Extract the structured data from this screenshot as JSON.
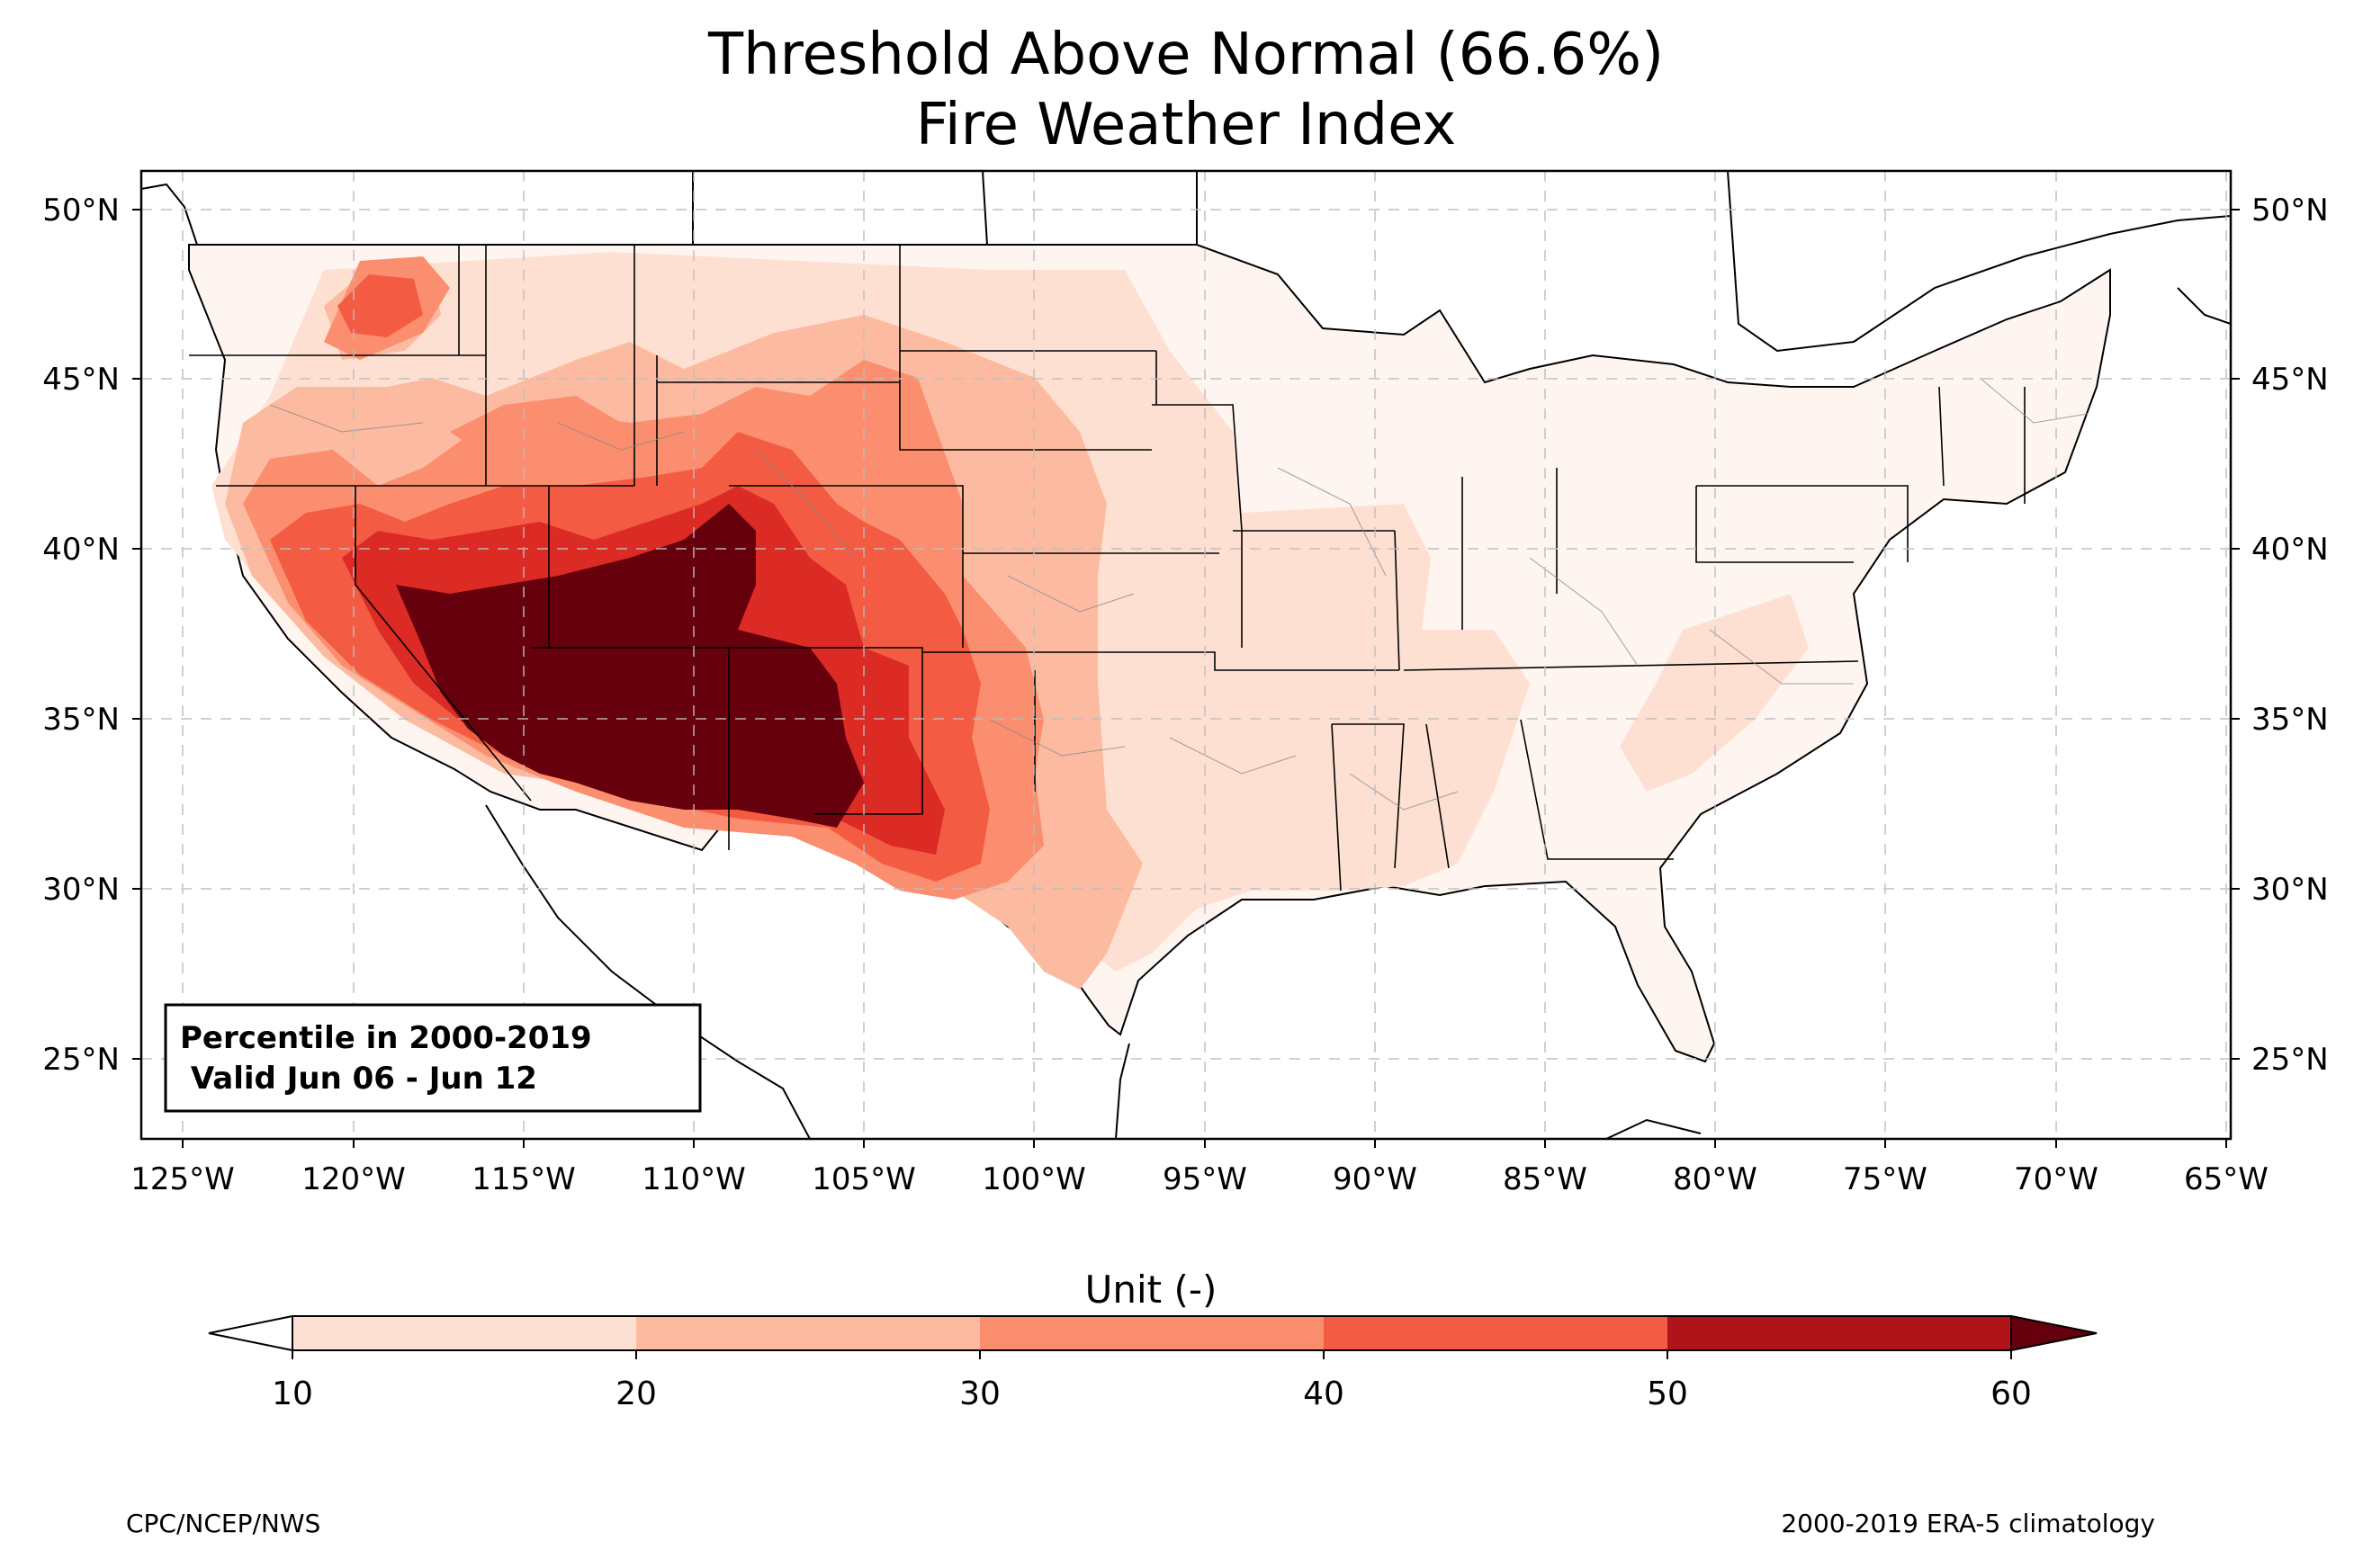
{
  "title": {
    "line1": "Threshold Above Normal (66.6%)",
    "line2": "Fire Weather Index"
  },
  "map": {
    "lat_ticks": [
      "50°N",
      "45°N",
      "40°N",
      "35°N",
      "30°N",
      "25°N"
    ],
    "lon_ticks": [
      "125°W",
      "120°W",
      "115°W",
      "110°W",
      "105°W",
      "100°W",
      "95°W",
      "90°W",
      "85°W",
      "80°W",
      "75°W",
      "70°W",
      "65°W"
    ],
    "extent": {
      "lon": [
        -126.3,
        -64.8
      ],
      "lat": [
        22.7,
        51.3
      ]
    },
    "gridlines": true,
    "info_box": {
      "line1": "Percentile in 2000-2019",
      "line2": " Valid Jun 06 - Jun 12"
    }
  },
  "colorbar": {
    "label": "Unit (-)",
    "ticks": [
      "10",
      "20",
      "30",
      "40",
      "50",
      "60"
    ],
    "colors": [
      "#fee0d2",
      "#fcbba1",
      "#fb8e6e",
      "#f35c43",
      "#dc2b25",
      "#b0131a"
    ],
    "under_color": "#ffffff",
    "over_color": "#67000d",
    "extend": "both"
  },
  "footer": {
    "left": "CPC/NCEP/NWS",
    "right": "2000-2019 ERA-5 climatology"
  },
  "legend_colors": {
    "background": "#fff5f0",
    "c10": "#fee0d2",
    "c20": "#fcbba1",
    "c30": "#fb8e6e",
    "c40": "#f35c43",
    "c50": "#dc2b25",
    "c60": "#b0131a",
    "c70": "#67000d"
  }
}
